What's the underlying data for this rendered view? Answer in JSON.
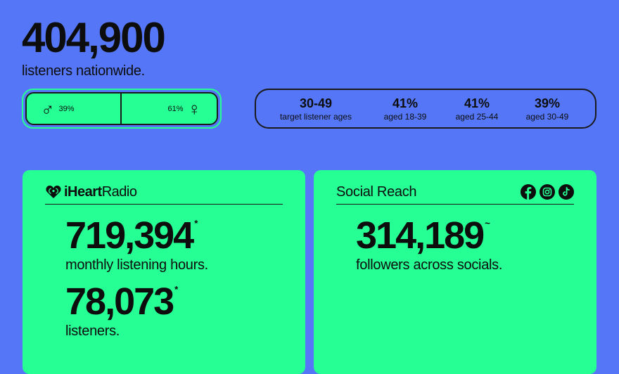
{
  "headline": {
    "number": "404,900",
    "label": "listeners nationwide."
  },
  "gender": {
    "male_pct": "39%",
    "male_symbol": "♂",
    "female_pct": "61%",
    "female_symbol": "♀"
  },
  "ages": [
    {
      "value": "30-49",
      "label": "target listener ages"
    },
    {
      "value": "41%",
      "label": "aged 18-39"
    },
    {
      "value": "41%",
      "label": "aged 25-44"
    },
    {
      "value": "39%",
      "label": "aged 30-49"
    }
  ],
  "iheart": {
    "logo_prefix": "iHeart",
    "logo_suffix": "Radio",
    "stats": [
      {
        "number": "719,394",
        "mark": "*",
        "label": "monthly listening hours."
      },
      {
        "number": "78,073",
        "mark": "*",
        "label": "listeners."
      }
    ]
  },
  "social": {
    "title": "Social Reach",
    "icons": [
      "facebook-icon",
      "instagram-icon",
      "tiktok-icon"
    ],
    "stats": [
      {
        "number": "314,189",
        "mark": "~",
        "label": "followers across socials."
      }
    ]
  },
  "colors": {
    "background": "#5577f7",
    "accent": "#26ff94",
    "ink": "#0d0d0d"
  }
}
